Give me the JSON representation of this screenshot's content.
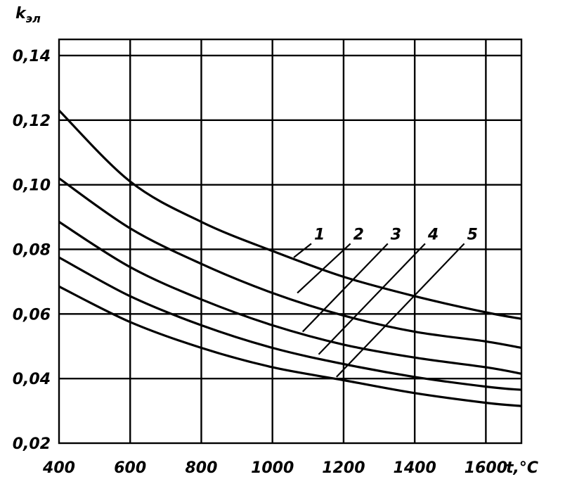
{
  "chart_data": {
    "type": "line",
    "title": "",
    "ylabel": "k",
    "ylabel_sub": "эл",
    "xlabel": "t,°C",
    "xlim": [
      400,
      1700
    ],
    "ylim": [
      0.02,
      0.145
    ],
    "grid": true,
    "x_ticks": [
      400,
      600,
      800,
      1000,
      1200,
      1400,
      1600
    ],
    "x_tick_labels": [
      "400",
      "600",
      "800",
      "1000",
      "1200",
      "1400",
      "1600"
    ],
    "y_ticks": [
      0.02,
      0.04,
      0.06,
      0.08,
      0.1,
      0.12,
      0.14
    ],
    "y_tick_labels": [
      "0,02",
      "0,04",
      "0,06",
      "0,08",
      "0,10",
      "0,12",
      "0,14"
    ],
    "series": [
      {
        "name": "1",
        "x": [
          400,
          600,
          800,
          1000,
          1200,
          1400,
          1600,
          1700
        ],
        "values": [
          0.123,
          0.101,
          0.0885,
          0.0795,
          0.0715,
          0.0655,
          0.0605,
          0.0585
        ]
      },
      {
        "name": "2",
        "x": [
          400,
          600,
          800,
          1000,
          1200,
          1400,
          1600,
          1700
        ],
        "values": [
          0.102,
          0.0865,
          0.0755,
          0.0665,
          0.0595,
          0.0545,
          0.0515,
          0.0495
        ]
      },
      {
        "name": "3",
        "x": [
          400,
          600,
          800,
          1000,
          1200,
          1400,
          1600,
          1700
        ],
        "values": [
          0.0885,
          0.0745,
          0.0645,
          0.0565,
          0.0505,
          0.0465,
          0.0435,
          0.0415
        ]
      },
      {
        "name": "4",
        "x": [
          400,
          600,
          800,
          1000,
          1200,
          1400,
          1600,
          1700
        ],
        "values": [
          0.0775,
          0.0655,
          0.0565,
          0.0495,
          0.0445,
          0.0405,
          0.0375,
          0.0365
        ]
      },
      {
        "name": "5",
        "x": [
          400,
          600,
          800,
          1000,
          1200,
          1400,
          1600,
          1700
        ],
        "values": [
          0.0685,
          0.0575,
          0.0495,
          0.0435,
          0.0395,
          0.0355,
          0.0325,
          0.0315
        ]
      }
    ],
    "annotations": [
      {
        "text": "1",
        "label_at": [
          1125,
          0.0835
        ],
        "points_to": [
          1060,
          0.0775
        ]
      },
      {
        "text": "2",
        "label_at": [
          1235,
          0.0835
        ],
        "points_to": [
          1070,
          0.0665
        ]
      },
      {
        "text": "3",
        "label_at": [
          1340,
          0.0835
        ],
        "points_to": [
          1085,
          0.0545
        ]
      },
      {
        "text": "4",
        "label_at": [
          1445,
          0.0835
        ],
        "points_to": [
          1130,
          0.0475
        ]
      },
      {
        "text": "5",
        "label_at": [
          1555,
          0.0835
        ],
        "points_to": [
          1180,
          0.0405
        ]
      }
    ]
  }
}
